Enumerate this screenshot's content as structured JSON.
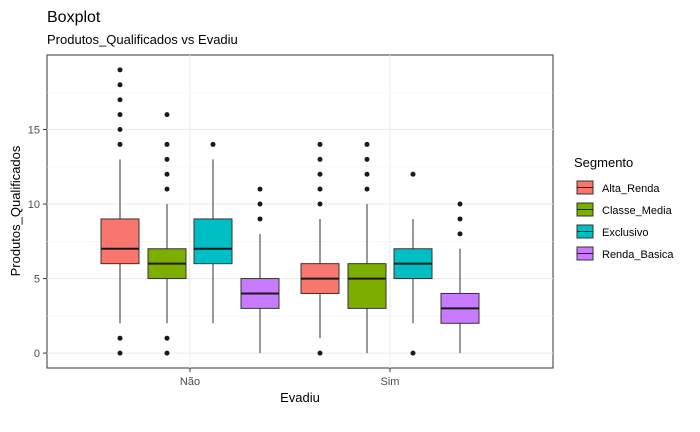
{
  "chart_data": {
    "type": "boxplot",
    "title": "Boxplot",
    "subtitle": "Produtos_Qualificados vs Evadiu",
    "xlabel": "Evadiu",
    "ylabel": "Produtos_Qualificados",
    "ylim": [
      -1,
      20
    ],
    "yticks": [
      0,
      5,
      10,
      15
    ],
    "categories": [
      "Não",
      "Sim"
    ],
    "grid": true,
    "legend": {
      "title": "Segmento",
      "position": "right"
    },
    "series": [
      {
        "name": "Alta_Renda",
        "color": "#F8766D",
        "boxes": [
          {
            "category": "Não",
            "whisker_low": 2,
            "q1": 6,
            "median": 7,
            "q3": 9,
            "whisker_high": 13,
            "outliers": [
              0,
              1,
              14,
              15,
              16,
              17,
              18,
              19
            ]
          },
          {
            "category": "Sim",
            "whisker_low": 1,
            "q1": 4,
            "median": 5,
            "q3": 6,
            "whisker_high": 9,
            "outliers": [
              0,
              10,
              11,
              12,
              13,
              14
            ]
          }
        ]
      },
      {
        "name": "Classe_Media",
        "color": "#7CAE00",
        "boxes": [
          {
            "category": "Não",
            "whisker_low": 2,
            "q1": 5,
            "median": 6,
            "q3": 7,
            "whisker_high": 10,
            "outliers": [
              0,
              1,
              11,
              12,
              13,
              14,
              16
            ]
          },
          {
            "category": "Sim",
            "whisker_low": 0,
            "q1": 3,
            "median": 5,
            "q3": 6,
            "whisker_high": 10,
            "outliers": [
              11,
              12,
              13,
              14
            ]
          }
        ]
      },
      {
        "name": "Exclusivo",
        "color": "#00BFC4",
        "boxes": [
          {
            "category": "Não",
            "whisker_low": 2,
            "q1": 6,
            "median": 7,
            "q3": 9,
            "whisker_high": 13,
            "outliers": [
              14
            ]
          },
          {
            "category": "Sim",
            "whisker_low": 2,
            "q1": 5,
            "median": 6,
            "q3": 7,
            "whisker_high": 9,
            "outliers": [
              0,
              12
            ]
          }
        ]
      },
      {
        "name": "Renda_Basica",
        "color": "#C77CFF",
        "boxes": [
          {
            "category": "Não",
            "whisker_low": 0,
            "q1": 3,
            "median": 4,
            "q3": 5,
            "whisker_high": 8,
            "outliers": [
              9,
              10,
              11
            ]
          },
          {
            "category": "Sim",
            "whisker_low": 0,
            "q1": 2,
            "median": 3,
            "q3": 4,
            "whisker_high": 7,
            "outliers": [
              8,
              9,
              10
            ]
          }
        ]
      }
    ]
  }
}
